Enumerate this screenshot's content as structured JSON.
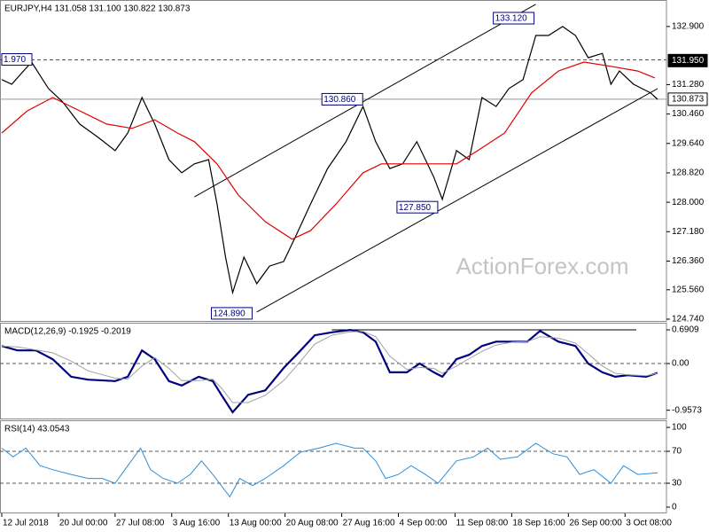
{
  "chart_data": [
    {
      "type": "line",
      "title": "EURJPY,H4  131.058 131.100 130.822 130.873",
      "watermark": "ActionForex.com",
      "xlim": [
        0,
        468
      ],
      "ylim": [
        124.69,
        133.59
      ],
      "yticks": [
        {
          "value": 132.9,
          "label": "132.900"
        },
        {
          "value": 131.28,
          "label": "131.280"
        },
        {
          "value": 130.46,
          "label": "130.460"
        },
        {
          "value": 129.64,
          "label": "129.640"
        },
        {
          "value": 128.82,
          "label": "128.820"
        },
        {
          "value": 128,
          "label": "128.000"
        },
        {
          "value": 127.18,
          "label": "127.180"
        },
        {
          "value": 126.36,
          "label": "126.360"
        },
        {
          "value": 125.56,
          "label": "125.560"
        },
        {
          "value": 124.74,
          "label": "124.740"
        }
      ],
      "series": [
        {
          "color": "#000000",
          "x": [
            0,
            7,
            21,
            33,
            43,
            55,
            68,
            80,
            89,
            99,
            108,
            118,
            127,
            136,
            146,
            152,
            158,
            163,
            171,
            180,
            189,
            199,
            208,
            218,
            230,
            243,
            255,
            264,
            274,
            283,
            293,
            305,
            311,
            321,
            330,
            339,
            349,
            358,
            368,
            377,
            386,
            396,
            405,
            414,
            424,
            430,
            436,
            446,
            452,
            458,
            463
          ],
          "values": [
            131.42,
            131.29,
            131.91,
            131.17,
            130.8,
            130.18,
            129.81,
            129.44,
            129.93,
            130.92,
            130.18,
            129.19,
            128.82,
            129.07,
            129.19,
            127.95,
            126.47,
            125.48,
            126.47,
            125.73,
            126.22,
            126.35,
            127.09,
            127.95,
            128.94,
            129.69,
            130.67,
            129.69,
            128.94,
            129.07,
            129.69,
            128.7,
            128.08,
            129.44,
            129.19,
            130.92,
            130.67,
            131.17,
            131.42,
            132.65,
            132.65,
            132.9,
            132.65,
            132.03,
            132.15,
            131.29,
            131.66,
            131.29,
            131.17,
            131.05,
            130.87
          ]
        },
        {
          "color": "#e00000",
          "x": [
            0,
            18,
            36,
            55,
            74,
            92,
            108,
            124,
            136,
            152,
            167,
            186,
            205,
            218,
            236,
            255,
            268,
            286,
            305,
            321,
            336,
            355,
            374,
            393,
            411,
            430,
            449,
            461
          ],
          "values": [
            129.93,
            130.55,
            130.92,
            130.55,
            130.18,
            130.06,
            130.3,
            129.93,
            129.69,
            129.07,
            128.2,
            127.46,
            126.97,
            127.21,
            127.95,
            128.82,
            129.07,
            129.07,
            129.07,
            129.07,
            129.44,
            129.93,
            131.05,
            131.66,
            131.91,
            131.79,
            131.66,
            131.47
          ]
        }
      ],
      "hlines": [
        {
          "value": 131.97,
          "style": "dashed"
        },
        {
          "value": 130.873,
          "style": "solid"
        }
      ],
      "trendlines": [
        {
          "x": [
            136,
            377
          ],
          "y": [
            128.15,
            133.52
          ]
        },
        {
          "x": [
            180,
            463
          ],
          "y": [
            124.94,
            131.17
          ]
        }
      ],
      "annotations": [
        {
          "label": "133.120",
          "x": 347,
          "y": 133.12
        },
        {
          "label": "130.860",
          "x": 226,
          "y": 130.86
        },
        {
          "label": "127.850",
          "x": 279,
          "y": 127.85
        },
        {
          "label": "124.890",
          "x": 148,
          "y": 124.89
        },
        {
          "label": "1.970",
          "x": 0,
          "y": 131.97
        }
      ],
      "price_tags": [
        {
          "value": 131.95,
          "label": "131.950",
          "style": "dark"
        },
        {
          "value": 130.873,
          "label": "130.873",
          "style": "light"
        }
      ]
    },
    {
      "type": "line",
      "title": "MACD(12,26,9) -0.1925 -0.2019",
      "xlim": [
        0,
        468
      ],
      "ylim": [
        -1.127,
        0.8
      ],
      "yticks": [
        0.6909,
        {
          "value": 0,
          "label": "0.00"
        },
        -0.9573
      ],
      "x": [
        0,
        11,
        24,
        36,
        49,
        61,
        80,
        89,
        99,
        108,
        118,
        127,
        139,
        149,
        155,
        163,
        174,
        186,
        199,
        211,
        221,
        233,
        246,
        255,
        264,
        274,
        286,
        295,
        305,
        311,
        321,
        330,
        339,
        349,
        361,
        371,
        380,
        393,
        405,
        414,
        424,
        433,
        442,
        455,
        463
      ],
      "series": [
        {
          "color": "#000080",
          "width": 2.2,
          "values": [
            0.36,
            0.27,
            0.27,
            0.09,
            -0.27,
            -0.33,
            -0.36,
            -0.27,
            0.27,
            0.09,
            -0.36,
            -0.45,
            -0.27,
            -0.36,
            -0.64,
            -1.0,
            -0.64,
            -0.55,
            -0.09,
            0.27,
            0.58,
            0.64,
            0.69,
            0.64,
            0.45,
            -0.18,
            -0.18,
            0,
            -0.18,
            -0.27,
            0.09,
            0.18,
            0.36,
            0.45,
            0.45,
            0.45,
            0.67,
            0.45,
            0.36,
            0,
            -0.18,
            -0.27,
            -0.24,
            -0.27,
            -0.19
          ]
        },
        {
          "color": "#a0a0a0",
          "width": 1,
          "values": [
            0.36,
            0.34,
            0.28,
            0.22,
            0.05,
            -0.15,
            -0.3,
            -0.32,
            -0.05,
            0.12,
            -0.1,
            -0.35,
            -0.35,
            -0.32,
            -0.5,
            -0.8,
            -0.8,
            -0.65,
            -0.35,
            0.05,
            0.4,
            0.58,
            0.65,
            0.66,
            0.55,
            0.15,
            -0.12,
            -0.08,
            -0.1,
            -0.2,
            -0.05,
            0.1,
            0.25,
            0.38,
            0.44,
            0.45,
            0.55,
            0.52,
            0.42,
            0.2,
            -0.05,
            -0.2,
            -0.23,
            -0.25,
            -0.2
          ]
        }
      ],
      "hlines": [
        {
          "value": 0,
          "style": "dashed"
        },
        {
          "value": 0.6909,
          "style": "solid",
          "x": [
            233,
            448
          ]
        }
      ]
    },
    {
      "type": "line",
      "title": "RSI(14) 43.0543",
      "xlim": [
        0,
        468
      ],
      "ylim": [
        -6.7,
        106.7
      ],
      "yticks": [
        100,
        70,
        30,
        0
      ],
      "x": [
        0,
        8,
        17,
        27,
        36,
        49,
        61,
        71,
        80,
        89,
        98,
        105,
        114,
        124,
        133,
        141,
        149,
        155,
        161,
        168,
        177,
        186,
        199,
        211,
        224,
        236,
        249,
        255,
        264,
        271,
        280,
        289,
        299,
        308,
        321,
        333,
        343,
        352,
        364,
        377,
        389,
        399,
        408,
        418,
        430,
        439,
        449,
        463
      ],
      "series": [
        {
          "color": "#2f8fd8",
          "width": 1,
          "values": [
            74,
            63,
            74,
            52,
            47,
            41,
            36,
            36,
            30,
            52,
            74,
            47,
            36,
            30,
            41,
            58,
            41,
            27,
            13,
            36,
            27,
            36,
            52,
            69,
            74,
            80,
            74,
            74,
            58,
            36,
            41,
            52,
            41,
            30,
            58,
            63,
            74,
            60,
            63,
            80,
            67,
            63,
            41,
            47,
            30,
            52,
            41,
            43
          ]
        }
      ],
      "hlines": [
        {
          "value": 70,
          "style": "dashed"
        },
        {
          "value": 30,
          "style": "dashed"
        }
      ],
      "xticks": [
        {
          "value": 0,
          "label": "12 Jul 2018"
        },
        {
          "value": 40,
          "label": "20 Jul 00:00"
        },
        {
          "value": 80,
          "label": "27 Jul 08:00"
        },
        {
          "value": 120,
          "label": "3 Aug 16:00"
        },
        {
          "value": 160,
          "label": "13 Aug 00:00"
        },
        {
          "value": 200,
          "label": "20 Aug 08:00"
        },
        {
          "value": 240,
          "label": "27 Aug 16:00"
        },
        {
          "value": 280,
          "label": "4 Sep 00:00"
        },
        {
          "value": 320,
          "label": "11 Sep 08:00"
        },
        {
          "value": 360,
          "label": "18 Sep 16:00"
        },
        {
          "value": 400,
          "label": "26 Sep 00:00"
        },
        {
          "value": 440,
          "label": "3 Oct 08:00"
        }
      ]
    }
  ]
}
